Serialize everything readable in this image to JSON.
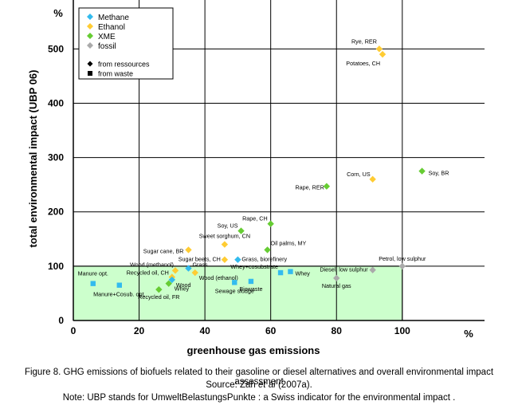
{
  "chart_data": {
    "type": "scatter",
    "ylabel": "total environmental impact (UBP 06)",
    "xlabel": "greenhouse gas emissions",
    "x_unit": "%",
    "y_unit": "%",
    "xlim": [
      0,
      125
    ],
    "ylim": [
      0,
      590
    ],
    "xticks": [
      0,
      20,
      40,
      60,
      80,
      100
    ],
    "yticks": [
      0,
      100,
      200,
      300,
      400,
      500
    ],
    "grid": true,
    "highlight_region": {
      "x": [
        0,
        100
      ],
      "y": [
        0,
        100
      ],
      "color": "#ccffcc"
    },
    "legend_position": "top-left",
    "legend": {
      "series": [
        {
          "name": "Methane",
          "color": "#33bbee"
        },
        {
          "name": "Ethanol",
          "color": "#ffcc33"
        },
        {
          "name": "XME",
          "color": "#66cc33"
        },
        {
          "name": "fossil",
          "color": "#aaaaaa"
        }
      ],
      "markers": [
        {
          "name": "from ressources",
          "shape": "diamond"
        },
        {
          "name": "from waste",
          "shape": "square"
        }
      ]
    },
    "points": [
      {
        "label": "Rye, RER",
        "series": "Ethanol",
        "shape": "diamond",
        "x": 93,
        "y": 500,
        "anchor": "end"
      },
      {
        "label": "Potatoes, CH",
        "series": "Ethanol",
        "shape": "diamond",
        "x": 94,
        "y": 490,
        "anchor": "end"
      },
      {
        "label": "Soy, BR",
        "series": "XME",
        "shape": "diamond",
        "x": 106,
        "y": 275,
        "anchor": "start"
      },
      {
        "label": "Corn, US",
        "series": "Ethanol",
        "shape": "diamond",
        "x": 91,
        "y": 260,
        "anchor": "end"
      },
      {
        "label": "Rape, RER",
        "series": "XME",
        "shape": "diamond",
        "x": 77,
        "y": 247,
        "anchor": "end"
      },
      {
        "label": "Rape, CH",
        "series": "XME",
        "shape": "diamond",
        "x": 60,
        "y": 178,
        "anchor": "end"
      },
      {
        "label": "Soy, US",
        "series": "XME",
        "shape": "diamond",
        "x": 51,
        "y": 165,
        "anchor": "end"
      },
      {
        "label": "Sweet sorghum, CN",
        "series": "Ethanol",
        "shape": "diamond",
        "x": 46,
        "y": 140,
        "anchor": "middle"
      },
      {
        "label": "Oil palms, MY",
        "series": "XME",
        "shape": "diamond",
        "x": 59,
        "y": 130,
        "anchor": "start"
      },
      {
        "label": "Sugar cane, BR",
        "series": "Ethanol",
        "shape": "diamond",
        "x": 35,
        "y": 130,
        "anchor": "end"
      },
      {
        "label": "Sugar beets, CH",
        "series": "Ethanol",
        "shape": "diamond",
        "x": 46,
        "y": 112,
        "anchor": "end"
      },
      {
        "label": "Grass, biorefinery",
        "series": "Methane",
        "shape": "diamond",
        "x": 50,
        "y": 112,
        "anchor": "start"
      },
      {
        "label": "Petrol, low sulphur",
        "series": "fossil",
        "shape": "diamond",
        "x": 100,
        "y": 100,
        "anchor": "middle"
      },
      {
        "label": "Whey+cosubstrate",
        "series": "Methane",
        "shape": "square",
        "x": 63,
        "y": 88,
        "anchor": "end"
      },
      {
        "label": "Whey",
        "series": "Methane",
        "shape": "square",
        "x": 66,
        "y": 90,
        "anchor": "start"
      },
      {
        "label": "Diesel, low sulphur",
        "series": "fossil",
        "shape": "diamond",
        "x": 91,
        "y": 93,
        "anchor": "end"
      },
      {
        "label": "Natural gas",
        "series": "fossil",
        "shape": "diamond",
        "x": 80,
        "y": 78,
        "anchor": "middle"
      },
      {
        "label": "Wood (methanol)",
        "series": "Ethanol",
        "shape": "diamond",
        "x": 31,
        "y": 92,
        "anchor": "end"
      },
      {
        "label": "Grass",
        "series": "Methane",
        "shape": "diamond",
        "x": 35,
        "y": 96,
        "anchor": "start"
      },
      {
        "label": "Wood (ethanol)",
        "series": "Ethanol",
        "shape": "diamond",
        "x": 37,
        "y": 88,
        "anchor": "start"
      },
      {
        "label": "Recycled oil, CH",
        "series": "Ethanol",
        "shape": "diamond",
        "x": 30,
        "y": 80,
        "anchor": "end"
      },
      {
        "label": "Wood",
        "series": "Methane",
        "shape": "diamond",
        "x": 30,
        "y": 75,
        "anchor": "start"
      },
      {
        "label": "Manure opt.",
        "series": "Methane",
        "shape": "square",
        "x": 6,
        "y": 68,
        "anchor": "middle"
      },
      {
        "label": "Manure+Cosub. opt.",
        "series": "Methane",
        "shape": "square",
        "x": 14,
        "y": 65,
        "anchor": "middle"
      },
      {
        "label": "Sewage sludge",
        "series": "Methane",
        "shape": "square",
        "x": 49,
        "y": 70,
        "anchor": "middle"
      },
      {
        "label": "Biowaste",
        "series": "Methane",
        "shape": "square",
        "x": 54,
        "y": 72,
        "anchor": "middle"
      },
      {
        "label": "Whey",
        "series": "XME",
        "shape": "diamond",
        "x": 29,
        "y": 68,
        "anchor": "start"
      },
      {
        "label": "Recycled oil, FR",
        "series": "XME",
        "shape": "diamond",
        "x": 26,
        "y": 57,
        "anchor": "middle"
      }
    ]
  },
  "caption": {
    "line1": "Figure 8. GHG emissions of biofuels related to their gasoline or diesel alternatives and overall environmental impact assessment",
    "line2_prefix": "Source: Zah ",
    "line2_italic": "et al",
    "line2_suffix": " (2007a).",
    "line3": "Note: UBP stands for UmweltBelastungsPunkte : a Swiss indicator for the environmental impact ."
  }
}
